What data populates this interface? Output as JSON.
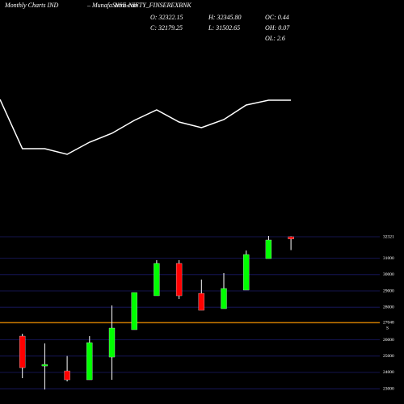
{
  "chart_data": [
    {
      "type": "line",
      "color": "#ffffff",
      "ylim": [
        0,
        100
      ],
      "values": [
        63.5,
        33,
        33,
        29.5,
        37,
        42.5,
        50.5,
        57,
        49.5,
        46,
        51,
        60,
        63,
        63
      ]
    },
    {
      "type": "candlestick",
      "up_color": "#00ff00",
      "down_color": "#ff0000",
      "title": "Monthly Charts IND",
      "site": "– MunafaSutra.com",
      "symbol": "NSE-NIFTY_FINSEREXBNK",
      "ohlc_labels": {
        "open": "O: 32322.15",
        "high": "H: 32345.80",
        "oc": "OC: 0.44",
        "close": "C: 32179.25",
        "low": "L: 31502.65",
        "oh": "OH: 0.07",
        "ol": "OL: 2.6"
      },
      "open": [
        26223,
        24388,
        24091,
        23545,
        24934,
        26619,
        28702,
        30685,
        28850,
        27908,
        29049,
        30982,
        32322.15
      ],
      "high": [
        26371,
        25776,
        25006,
        26223,
        28107,
        28900,
        30883,
        30883,
        29693,
        30090,
        31478,
        32371,
        32345.8
      ],
      "low": [
        23645,
        22950,
        23446,
        23545,
        23545,
        26619,
        28702,
        28503,
        27809,
        27908,
        29049,
        30982,
        31502.65
      ],
      "close": [
        24289,
        24487,
        23545,
        25826,
        26719,
        28900,
        30685,
        28702,
        27809,
        29148,
        31230,
        32123,
        32179.25
      ],
      "ylim": [
        22060,
        32718
      ],
      "yticks": [
        32321,
        31000,
        30000,
        29000,
        28000,
        27048,
        26000,
        25000,
        24000,
        23000
      ],
      "grid_color": "#1a1a66",
      "support": {
        "value": 27048,
        "label": "S",
        "color": "#cc7a00"
      }
    }
  ]
}
